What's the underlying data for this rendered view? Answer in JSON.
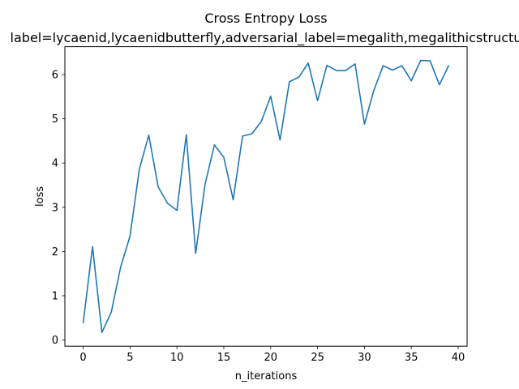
{
  "chart_data": {
    "type": "line",
    "title": "Cross Entropy Loss",
    "subtitle": "label=lycaenid,lycaenidbutterfly,adversarial_label=megalith,megalithicstructu",
    "xlabel": "n_iterations",
    "ylabel": "loss",
    "xlim": [
      -1.95,
      40.95
    ],
    "ylim": [
      -0.14,
      6.63
    ],
    "xticks": [
      0,
      5,
      10,
      15,
      20,
      25,
      30,
      35,
      40
    ],
    "yticks": [
      0,
      1,
      2,
      3,
      4,
      5,
      6
    ],
    "grid": false,
    "legend": "none",
    "color": "#1f77b4",
    "series": [
      {
        "x": [
          0,
          1,
          2,
          3,
          4,
          5,
          6,
          7,
          8,
          9,
          10,
          11,
          12,
          13,
          14,
          15,
          16,
          17,
          18,
          19,
          20,
          21,
          22,
          23,
          24,
          25,
          26,
          27,
          28,
          29,
          30,
          31,
          32,
          33,
          34,
          35,
          36,
          37,
          38,
          39
        ],
        "values": [
          0.38,
          2.11,
          0.17,
          0.63,
          1.65,
          2.35,
          3.87,
          4.63,
          3.46,
          3.09,
          2.93,
          4.64,
          1.96,
          3.52,
          4.41,
          4.13,
          3.17,
          4.61,
          4.66,
          4.94,
          5.51,
          4.52,
          5.84,
          5.94,
          6.26,
          5.41,
          6.21,
          6.09,
          6.09,
          6.24,
          4.88,
          5.64,
          6.2,
          6.1,
          6.2,
          5.86,
          6.32,
          6.31,
          5.77,
          6.21
        ]
      }
    ]
  }
}
